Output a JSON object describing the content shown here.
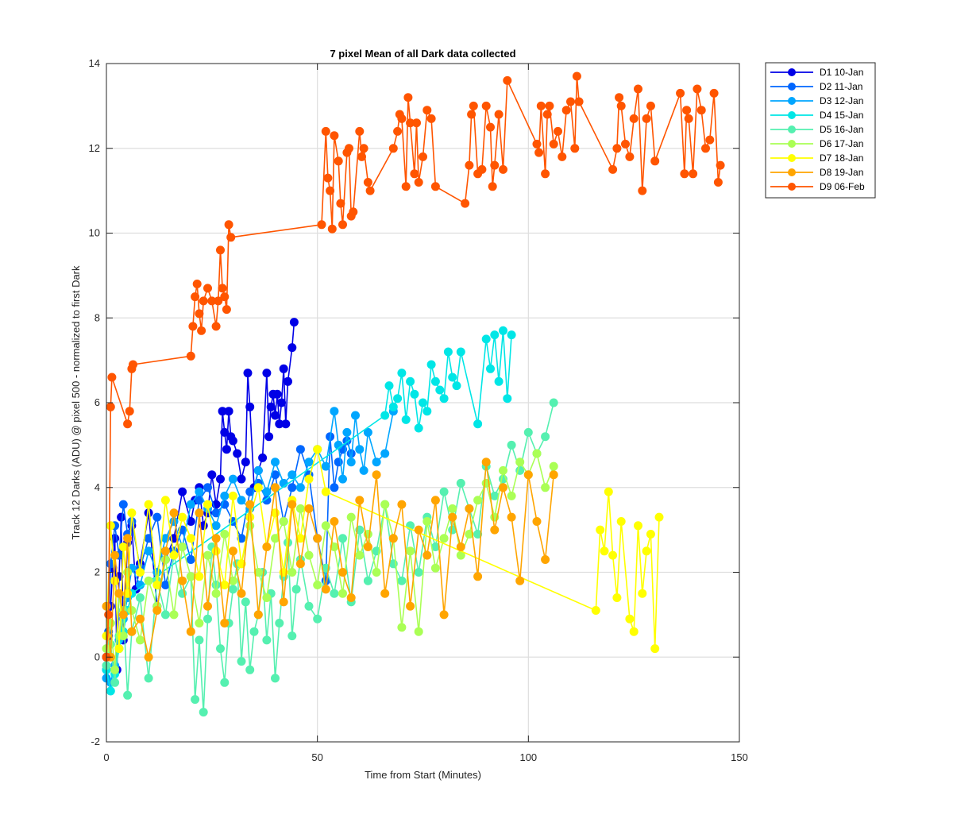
{
  "chart_data": {
    "type": "line",
    "title": "7 pixel Mean of all Dark data collected",
    "xlabel": "Time from Start (Minutes)",
    "ylabel": "Track 12 Darks (ADU) @ pixel 500 - normalized to first Dark",
    "xlim": [
      0,
      150
    ],
    "ylim": [
      -2,
      14
    ],
    "xticks": [
      "0",
      "50",
      "100",
      "150"
    ],
    "yticks": [
      "-2",
      "0",
      "2",
      "4",
      "6",
      "8",
      "10",
      "12",
      "14"
    ],
    "grid": true,
    "legend_position": "outside-top-right",
    "series": [
      {
        "name": "D1 10-Jan",
        "color": "#0000e6",
        "x": [
          0,
          0.5,
          1,
          1.5,
          2,
          2.5,
          3,
          3.5,
          4,
          5,
          6,
          7,
          8,
          10,
          12,
          14,
          16,
          18,
          20,
          21,
          22,
          23,
          24,
          25,
          26,
          27,
          27.5,
          28,
          28.5,
          29,
          29.5,
          30,
          31,
          32,
          33,
          33.5,
          34,
          35,
          36,
          37,
          38,
          38.5,
          39,
          39.5,
          40,
          40.5,
          41,
          41.5,
          42,
          42.5,
          43,
          44,
          44.5
        ],
        "y": [
          0,
          0.5,
          1.2,
          2.1,
          2.8,
          -0.3,
          1.9,
          3.3,
          0.4,
          2.7,
          3.1,
          1.6,
          2.2,
          3.4,
          1.2,
          2.3,
          2.8,
          3.9,
          3.2,
          3.7,
          4.0,
          3.1,
          3.4,
          4.3,
          3.6,
          4.2,
          5.8,
          5.3,
          4.9,
          5.8,
          5.2,
          5.1,
          4.8,
          4.2,
          4.6,
          6.7,
          5.9,
          4.0,
          4.4,
          4.7,
          6.7,
          5.2,
          5.9,
          6.2,
          5.7,
          6.2,
          5.5,
          6.0,
          6.8,
          5.5,
          6.5,
          7.3,
          7.9
        ]
      },
      {
        "name": "D2 11-Jan",
        "color": "#0066ff",
        "x": [
          0,
          0.5,
          1,
          2,
          3,
          4,
          5,
          6,
          8,
          10,
          12,
          14,
          16,
          18,
          20,
          22,
          24,
          26,
          28,
          30,
          32,
          34,
          36,
          38,
          40,
          42,
          44,
          46,
          48,
          50,
          52,
          53,
          54,
          55,
          56,
          57,
          58
        ],
        "y": [
          -0.3,
          0.6,
          2.2,
          3.1,
          2.4,
          3.6,
          2.9,
          3.2,
          2.1,
          2.8,
          3.3,
          1.7,
          2.5,
          3.0,
          2.3,
          3.7,
          4.0,
          3.4,
          3.6,
          3.2,
          2.8,
          3.9,
          4.1,
          3.7,
          4.3,
          3.2,
          4.0,
          4.9,
          4.3,
          2.8,
          1.8,
          5.2,
          4.0,
          4.6,
          4.9,
          5.1,
          4.8
        ]
      },
      {
        "name": "D3 12-Jan",
        "color": "#00a6ff",
        "x": [
          0,
          1,
          2,
          3,
          4,
          5,
          6,
          8,
          10,
          12,
          14,
          16,
          18,
          20,
          22,
          24,
          26,
          28,
          30,
          32,
          34,
          36,
          38,
          40,
          42,
          44,
          46,
          48,
          50,
          52,
          54,
          55,
          56,
          57,
          58,
          59,
          60,
          61,
          62,
          64,
          66,
          68
        ],
        "y": [
          -0.5,
          -0.6,
          -0.2,
          0.4,
          0.9,
          1.4,
          2.1,
          1.7,
          2.5,
          2.0,
          2.8,
          3.2,
          2.6,
          3.6,
          3.9,
          3.5,
          3.1,
          3.8,
          4.2,
          3.7,
          3.5,
          4.4,
          3.9,
          4.6,
          4.1,
          4.3,
          4.0,
          4.6,
          4.9,
          4.5,
          5.8,
          5.0,
          4.2,
          5.3,
          4.6,
          5.7,
          4.9,
          4.4,
          5.3,
          4.6,
          4.8,
          5.8
        ]
      },
      {
        "name": "D4 15-Jan",
        "color": "#00e6e6",
        "x": [
          0,
          1,
          2,
          3,
          4,
          5,
          6,
          66,
          67,
          68,
          69,
          70,
          71,
          72,
          73,
          74,
          75,
          76,
          77,
          78,
          79,
          80,
          81,
          82,
          83,
          84,
          88,
          90,
          91,
          92,
          93,
          94,
          95,
          96
        ],
        "y": [
          -0.3,
          -0.8,
          -0.4,
          0.2,
          0.6,
          1.1,
          1.5,
          5.7,
          6.4,
          5.9,
          6.1,
          6.7,
          5.6,
          6.5,
          6.2,
          5.4,
          6.0,
          5.8,
          6.9,
          6.5,
          6.3,
          6.1,
          7.2,
          6.6,
          6.4,
          7.2,
          5.5,
          7.5,
          6.8,
          7.6,
          6.5,
          7.7,
          6.1,
          7.6
        ]
      },
      {
        "name": "D5 16-Jan",
        "color": "#55f0b0",
        "x": [
          0,
          1,
          2,
          3,
          4,
          5,
          6,
          8,
          10,
          12,
          14,
          16,
          18,
          20,
          21,
          22,
          23,
          24,
          25,
          26,
          27,
          28,
          29,
          30,
          31,
          32,
          33,
          34,
          35,
          36,
          37,
          38,
          39,
          40,
          41,
          42,
          43,
          44,
          45,
          46,
          48,
          50,
          52,
          54,
          56,
          58,
          60,
          62,
          64,
          66,
          68,
          70,
          72,
          74,
          76,
          78,
          80,
          82,
          84,
          86,
          88,
          90,
          92,
          94,
          96,
          98,
          100,
          102,
          104,
          106
        ],
        "y": [
          -0.2,
          0.3,
          -0.6,
          0.5,
          1.1,
          -0.9,
          0.6,
          1.4,
          -0.5,
          1.8,
          1.0,
          2.4,
          1.5,
          1.9,
          -1.0,
          0.4,
          -1.3,
          0.9,
          2.6,
          1.7,
          0.2,
          -0.6,
          0.8,
          1.6,
          2.2,
          -0.1,
          1.3,
          -0.3,
          0.6,
          1.0,
          2.0,
          0.4,
          1.5,
          -0.5,
          0.8,
          1.9,
          2.7,
          0.5,
          1.6,
          2.3,
          1.2,
          0.9,
          2.1,
          1.5,
          2.8,
          1.3,
          3.0,
          1.8,
          2.5,
          3.6,
          2.2,
          1.8,
          3.1,
          2.0,
          3.3,
          2.6,
          3.9,
          3.0,
          4.1,
          3.5,
          2.9,
          4.5,
          3.8,
          4.2,
          5.0,
          4.4,
          5.3,
          4.8,
          5.2,
          6.0
        ]
      },
      {
        "name": "D6 17-Jan",
        "color": "#aaff55",
        "x": [
          0,
          1,
          2,
          3,
          4,
          5,
          6,
          8,
          10,
          12,
          14,
          16,
          18,
          20,
          22,
          24,
          26,
          28,
          30,
          32,
          34,
          36,
          38,
          40,
          42,
          44,
          46,
          48,
          50,
          52,
          54,
          56,
          58,
          60,
          62,
          64,
          66,
          68,
          70,
          72,
          74,
          76,
          78,
          80,
          82,
          84,
          86,
          88,
          90,
          92,
          94,
          96,
          98,
          100,
          102,
          104,
          106
        ],
        "y": [
          0.2,
          0.8,
          -0.3,
          1.5,
          0.5,
          2.0,
          1.1,
          0.4,
          1.8,
          1.2,
          2.3,
          1.0,
          2.6,
          1.9,
          0.8,
          2.4,
          1.5,
          2.9,
          1.8,
          2.2,
          3.1,
          2.0,
          1.4,
          2.8,
          3.2,
          2.0,
          3.5,
          2.4,
          1.7,
          3.1,
          2.6,
          1.5,
          3.3,
          2.4,
          2.9,
          2.0,
          3.6,
          2.8,
          0.7,
          2.5,
          0.6,
          3.2,
          2.1,
          2.8,
          3.5,
          2.4,
          2.9,
          3.7,
          4.1,
          3.3,
          4.4,
          3.8,
          4.6,
          4.3,
          4.8,
          4.0,
          4.5
        ]
      },
      {
        "name": "D7 18-Jan",
        "color": "#ffff00",
        "x": [
          0,
          1,
          2,
          3,
          4,
          5,
          6,
          8,
          10,
          12,
          14,
          16,
          18,
          20,
          22,
          24,
          26,
          28,
          30,
          32,
          34,
          36,
          38,
          40,
          42,
          44,
          46,
          48,
          50,
          52,
          116,
          117,
          118,
          119,
          120,
          121,
          122,
          124,
          125,
          126,
          127,
          128,
          129,
          130,
          131
        ],
        "y": [
          0.5,
          3.1,
          1.8,
          0.2,
          2.6,
          1.5,
          3.4,
          2.0,
          3.6,
          1.7,
          3.7,
          2.4,
          3.3,
          2.8,
          1.9,
          3.6,
          2.5,
          1.7,
          3.8,
          2.2,
          3.3,
          4.0,
          2.6,
          3.4,
          2.0,
          3.7,
          2.8,
          4.2,
          4.9,
          3.9,
          1.1,
          3.0,
          2.5,
          3.9,
          2.4,
          1.4,
          3.2,
          0.9,
          0.6,
          3.1,
          1.5,
          2.5,
          2.9,
          0.2,
          3.3
        ]
      },
      {
        "name": "D8 19-Jan",
        "color": "#ffa500",
        "x": [
          0,
          1,
          2,
          3,
          4,
          5,
          6,
          8,
          10,
          12,
          14,
          16,
          18,
          20,
          22,
          24,
          26,
          28,
          30,
          32,
          34,
          36,
          38,
          40,
          42,
          44,
          46,
          48,
          50,
          52,
          54,
          56,
          58,
          60,
          62,
          64,
          66,
          68,
          70,
          72,
          74,
          76,
          78,
          80,
          82,
          84,
          86,
          88,
          90,
          92,
          94,
          96,
          98,
          100,
          102,
          104,
          106
        ],
        "y": [
          1.2,
          0.0,
          2.4,
          1.5,
          1.0,
          2.8,
          0.6,
          0.9,
          0.0,
          1.1,
          2.5,
          3.4,
          1.8,
          0.6,
          3.4,
          1.2,
          2.8,
          0.8,
          2.5,
          1.5,
          3.6,
          1.0,
          2.6,
          4.0,
          1.3,
          3.6,
          2.2,
          3.5,
          2.8,
          1.6,
          3.2,
          2.0,
          1.4,
          3.7,
          2.6,
          4.3,
          1.5,
          2.8,
          3.6,
          1.2,
          3.0,
          2.4,
          3.7,
          1.0,
          3.3,
          2.6,
          3.5,
          1.9,
          4.6,
          3.0,
          4.0,
          3.3,
          1.8,
          4.3,
          3.2,
          2.3,
          4.3
        ]
      },
      {
        "name": "D9 06-Feb",
        "color": "#ff5500",
        "x": [
          0,
          0.5,
          1,
          1.3,
          5,
          5.5,
          6,
          6.3,
          20,
          20.5,
          21,
          21.5,
          22,
          22.5,
          23,
          24,
          25,
          26,
          26.5,
          27,
          27.5,
          28,
          28.5,
          29,
          29.5,
          51,
          52,
          52.5,
          53,
          53.5,
          54,
          55,
          55.5,
          56,
          57,
          57.5,
          58,
          58.5,
          60,
          60.5,
          61,
          62,
          62.5,
          68,
          69,
          69.5,
          70,
          71,
          71.5,
          72,
          73,
          73.5,
          74,
          75,
          76,
          77,
          78,
          85,
          86,
          86.5,
          87,
          88,
          89,
          90,
          91,
          91.5,
          92,
          93,
          94,
          95,
          102,
          102.5,
          103,
          104,
          104.5,
          105,
          106,
          107,
          108,
          109,
          110,
          111,
          111.5,
          112,
          120,
          121,
          121.5,
          122,
          123,
          124,
          125,
          126,
          127,
          128,
          129,
          130,
          136,
          137,
          137.5,
          138,
          139,
          140,
          141,
          142,
          143,
          144,
          145,
          145.5
        ],
        "y": [
          0,
          1.0,
          5.9,
          6.6,
          5.5,
          5.8,
          6.8,
          6.9,
          7.1,
          7.8,
          8.5,
          8.8,
          8.1,
          7.7,
          8.4,
          8.7,
          8.4,
          7.8,
          8.4,
          9.6,
          8.7,
          8.5,
          8.2,
          10.2,
          9.9,
          10.2,
          12.4,
          11.3,
          11.0,
          10.1,
          12.3,
          11.7,
          10.7,
          10.2,
          11.9,
          12.0,
          10.4,
          10.5,
          12.4,
          11.8,
          12.0,
          11.2,
          11.0,
          12.0,
          12.4,
          12.8,
          12.7,
          11.1,
          13.2,
          12.6,
          11.4,
          12.6,
          11.2,
          11.8,
          12.9,
          12.7,
          11.1,
          10.7,
          11.6,
          12.8,
          13.0,
          11.4,
          11.5,
          13.0,
          12.5,
          11.1,
          11.6,
          12.8,
          11.5,
          13.6,
          12.1,
          11.9,
          13.0,
          11.4,
          12.8,
          13.0,
          12.1,
          12.4,
          11.8,
          12.9,
          13.1,
          12.0,
          13.7,
          13.1,
          11.5,
          12.0,
          13.2,
          13.0,
          12.1,
          11.8,
          12.7,
          13.4,
          11.0,
          12.7,
          13.0,
          11.7,
          13.3,
          11.4,
          12.9,
          12.7,
          11.4,
          13.4,
          12.9,
          12.0,
          12.2,
          13.3,
          11.2,
          11.6
        ]
      }
    ]
  }
}
